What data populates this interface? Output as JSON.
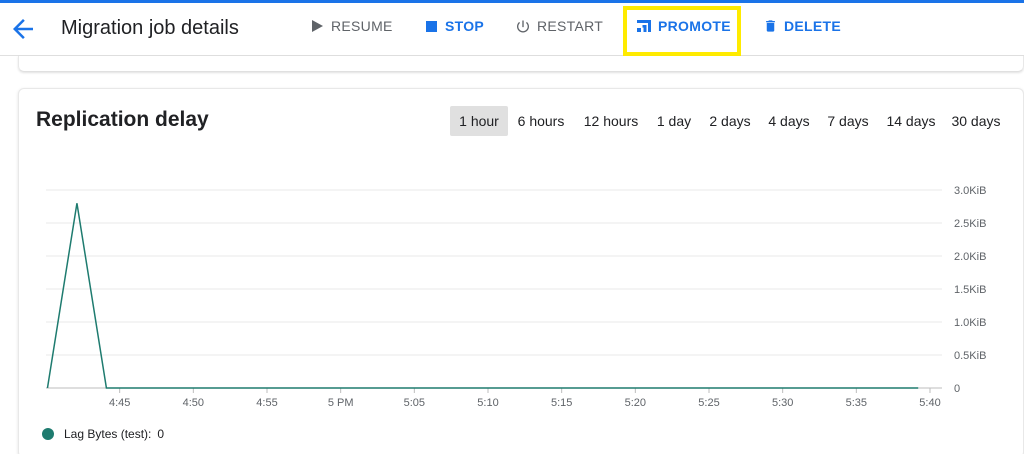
{
  "header": {
    "title": "Migration job details",
    "buttons": {
      "resume": "RESUME",
      "stop": "STOP",
      "restart": "RESTART",
      "promote": "PROMOTE",
      "delete": "DELETE"
    }
  },
  "colors": {
    "accent": "#1a73e8",
    "disabled": "#5f6368",
    "highlight": "#ffeb00",
    "series": "#1e7b6f"
  },
  "card": {
    "title": "Replication delay",
    "ranges": [
      "1 hour",
      "6 hours",
      "12 hours",
      "1 day",
      "2 days",
      "4 days",
      "7 days",
      "14 days",
      "30 days"
    ],
    "selected_range": "1 hour"
  },
  "legend": {
    "label": "Lag Bytes (test):",
    "value": "0"
  },
  "chart_data": {
    "type": "line",
    "x_tick_labels": [
      "4:45",
      "4:50",
      "4:55",
      "5 PM",
      "5:05",
      "5:10",
      "5:15",
      "5:20",
      "5:25",
      "5:30",
      "5:35",
      "5:40"
    ],
    "y_tick_labels": [
      "0",
      "0.5KiB",
      "1.0KiB",
      "1.5KiB",
      "2.0KiB",
      "2.5KiB",
      "3.0KiB"
    ],
    "ylim_kib": [
      0,
      3.0
    ],
    "grid": true,
    "series": [
      {
        "name": "Lag Bytes (test)",
        "color": "#1e7b6f",
        "x_minutes_after_4pm": [
          40.1,
          42.1,
          44.1,
          99.2
        ],
        "y_kib": [
          0,
          2.8,
          0,
          0
        ]
      }
    ]
  }
}
